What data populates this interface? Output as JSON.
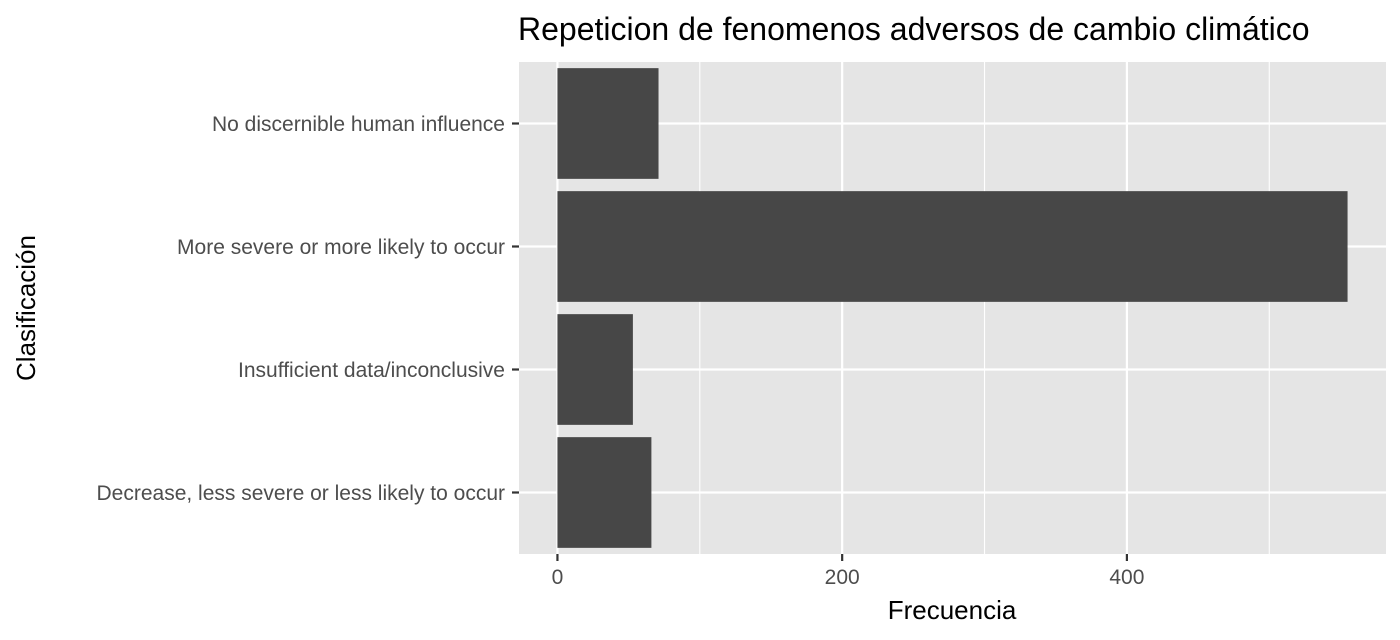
{
  "chart_data": {
    "type": "bar",
    "orientation": "horizontal",
    "title": "Repeticion de fenomenos adversos de cambio climático",
    "xlabel": "Frecuencia",
    "ylabel": "Clasificación",
    "categories": [
      "Decrease, less severe or less likely to occur",
      "Insufficient data/inconclusive",
      "More severe or more likely to occur",
      "No discernible human influence"
    ],
    "values": [
      66,
      53,
      555,
      71
    ],
    "xlim": [
      -27,
      582
    ],
    "x_ticks": [
      0,
      200,
      400
    ],
    "x_tick_labels": [
      "0",
      "200",
      "400"
    ],
    "grid": true,
    "colors": {
      "bar": "#474747",
      "panel": "#e5e5e5",
      "grid": "#ffffff"
    }
  }
}
